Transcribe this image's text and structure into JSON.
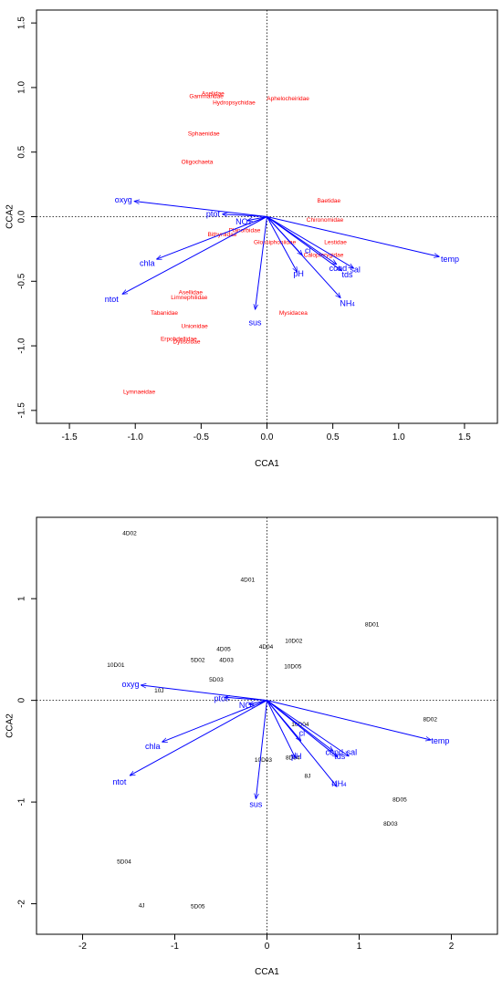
{
  "chart_data": [
    {
      "type": "scatter",
      "title": "",
      "xlabel": "CCA1",
      "ylabel": "CCA2",
      "xlim": [
        -1.75,
        1.75
      ],
      "ylim": [
        -1.6,
        1.6
      ],
      "xticks": [
        -1.5,
        -1.0,
        -0.5,
        0.0,
        0.5,
        1.0,
        1.5
      ],
      "xtick_labels": [
        "-1.5",
        "-1.0",
        "-0.5",
        "0.0",
        "0.5",
        "1.0",
        "1.5"
      ],
      "yticks": [
        -1.5,
        -1.0,
        -0.5,
        0.0,
        0.5,
        1.0,
        1.5
      ],
      "ytick_labels": [
        "-1.5",
        "-1.0",
        "-0.5",
        "0.0",
        "0.5",
        "1.0",
        "1.5"
      ],
      "grid": false,
      "reference_lines": {
        "x": 0,
        "y": 0
      },
      "colors": {
        "species": "#ff0000",
        "variables": "#0000ff"
      },
      "species": [
        {
          "label": "Gammaridae",
          "x": -0.46,
          "y": 0.93
        },
        {
          "label": "Aselidae",
          "x": -0.41,
          "y": 0.95
        },
        {
          "label": "Hydropsychidae",
          "x": -0.25,
          "y": 0.88
        },
        {
          "label": "Aphelocheiridae",
          "x": 0.16,
          "y": 0.91
        },
        {
          "label": "Sphaenidae",
          "x": -0.48,
          "y": 0.64
        },
        {
          "label": "Oligochaeta",
          "x": -0.53,
          "y": 0.42
        },
        {
          "label": "Baetidae",
          "x": 0.47,
          "y": 0.12
        },
        {
          "label": "Chironomidae",
          "x": 0.44,
          "y": -0.03
        },
        {
          "label": "Planorbidae",
          "x": -0.17,
          "y": -0.11
        },
        {
          "label": "Bithyniidae",
          "x": -0.34,
          "y": -0.14
        },
        {
          "label": "Glossiphoniidae",
          "x": 0.06,
          "y": -0.2
        },
        {
          "label": "Lestidae",
          "x": 0.52,
          "y": -0.2
        },
        {
          "label": "Calopterygidae",
          "x": 0.43,
          "y": -0.3
        },
        {
          "label": "Asellidae",
          "x": -0.58,
          "y": -0.59
        },
        {
          "label": "Limnephilidae",
          "x": -0.59,
          "y": -0.63
        },
        {
          "label": "Tabanidae",
          "x": -0.78,
          "y": -0.75
        },
        {
          "label": "Mysidacea",
          "x": 0.2,
          "y": -0.75
        },
        {
          "label": "Unionidae",
          "x": -0.55,
          "y": -0.85
        },
        {
          "label": "Erpobdellidae",
          "x": -0.67,
          "y": -0.95
        },
        {
          "label": "Dytiscidae",
          "x": -0.61,
          "y": -0.97
        },
        {
          "label": "Lymnaeidae",
          "x": -0.97,
          "y": -1.36
        }
      ],
      "vectors": [
        {
          "label": "oxyg",
          "x": -1.01,
          "y": 0.12,
          "label_x": -1.09,
          "label_y": 0.13
        },
        {
          "label": "ptot",
          "x": -0.34,
          "y": 0.02,
          "label_x": -0.41,
          "label_y": 0.02
        },
        {
          "label": "NO3",
          "x": -0.15,
          "y": -0.03,
          "label_x": -0.18,
          "label_y": -0.04
        },
        {
          "label": "chla",
          "x": -0.84,
          "y": -0.33,
          "label_x": -0.91,
          "label_y": -0.36
        },
        {
          "label": "ntot",
          "x": -1.1,
          "y": -0.6,
          "label_x": -1.18,
          "label_y": -0.64
        },
        {
          "label": "sus",
          "x": -0.09,
          "y": -0.72,
          "label_x": -0.09,
          "label_y": -0.82
        },
        {
          "label": "pH",
          "x": 0.23,
          "y": -0.43,
          "label_x": 0.24,
          "label_y": -0.44
        },
        {
          "label": "cl",
          "x": 0.27,
          "y": -0.3,
          "label_x": 0.31,
          "label_y": -0.26
        },
        {
          "label": "cond",
          "x": 0.53,
          "y": -0.37,
          "label_x": 0.54,
          "label_y": -0.4
        },
        {
          "label": "sal",
          "x": 0.66,
          "y": -0.4,
          "label_x": 0.67,
          "label_y": -0.41
        },
        {
          "label": "tds",
          "x": 0.57,
          "y": -0.42,
          "label_x": 0.61,
          "label_y": -0.45
        },
        {
          "label": "NH4",
          "x": 0.56,
          "y": -0.63,
          "label_x": 0.61,
          "label_y": -0.67
        },
        {
          "label": "temp",
          "x": 1.31,
          "y": -0.31,
          "label_x": 1.39,
          "label_y": -0.33
        }
      ]
    },
    {
      "type": "scatter",
      "title": "",
      "xlabel": "CCA1",
      "ylabel": "CCA2",
      "xlim": [
        -2.5,
        2.5
      ],
      "ylim": [
        -2.3,
        1.8
      ],
      "xticks": [
        -2,
        -1,
        0,
        1,
        2
      ],
      "xtick_labels": [
        "-2",
        "-1",
        "0",
        "1",
        "2"
      ],
      "yticks": [
        -2,
        -1,
        0,
        1
      ],
      "ytick_labels": [
        "-2",
        "-1",
        "0",
        "1"
      ],
      "grid": false,
      "reference_lines": {
        "x": 0,
        "y": 0
      },
      "colors": {
        "sites": "#000000",
        "variables": "#0000ff"
      },
      "sites": [
        {
          "label": "4D02",
          "x": -1.49,
          "y": 1.64
        },
        {
          "label": "4D01",
          "x": -0.21,
          "y": 1.18
        },
        {
          "label": "8D01",
          "x": 1.14,
          "y": 0.74
        },
        {
          "label": "10D02",
          "x": 0.29,
          "y": 0.58
        },
        {
          "label": "4D04",
          "x": -0.01,
          "y": 0.52
        },
        {
          "label": "4D05",
          "x": -0.47,
          "y": 0.5
        },
        {
          "label": "5D02",
          "x": -0.75,
          "y": 0.39
        },
        {
          "label": "4D03",
          "x": -0.44,
          "y": 0.39
        },
        {
          "label": "10D01",
          "x": -1.64,
          "y": 0.34
        },
        {
          "label": "10D05",
          "x": 0.28,
          "y": 0.33
        },
        {
          "label": "5D03",
          "x": -0.55,
          "y": 0.2
        },
        {
          "label": "10J",
          "x": -1.17,
          "y": 0.09
        },
        {
          "label": "8D02",
          "x": 1.77,
          "y": -0.19
        },
        {
          "label": "10D04",
          "x": 0.36,
          "y": -0.24
        },
        {
          "label": "8D04",
          "x": 0.28,
          "y": -0.57
        },
        {
          "label": "10D03",
          "x": -0.04,
          "y": -0.59
        },
        {
          "label": "8J",
          "x": 0.44,
          "y": -0.75
        },
        {
          "label": "8D05",
          "x": 1.44,
          "y": -0.98
        },
        {
          "label": "8D03",
          "x": 1.34,
          "y": -1.22
        },
        {
          "label": "5D04",
          "x": -1.55,
          "y": -1.59
        },
        {
          "label": "4J",
          "x": -1.36,
          "y": -2.02
        },
        {
          "label": "5D05",
          "x": -0.75,
          "y": -2.03
        }
      ],
      "vectors": [
        {
          "label": "oxyg",
          "x": -1.37,
          "y": 0.15,
          "label_x": -1.48,
          "label_y": 0.16
        },
        {
          "label": "ptot",
          "x": -0.46,
          "y": 0.03,
          "label_x": -0.5,
          "label_y": 0.02
        },
        {
          "label": "NO3",
          "x": -0.2,
          "y": -0.04,
          "label_x": -0.22,
          "label_y": -0.05
        },
        {
          "label": "chla",
          "x": -1.14,
          "y": -0.41,
          "label_x": -1.24,
          "label_y": -0.45
        },
        {
          "label": "ntot",
          "x": -1.49,
          "y": -0.74,
          "label_x": -1.6,
          "label_y": -0.8
        },
        {
          "label": "sus",
          "x": -0.12,
          "y": -0.97,
          "label_x": -0.12,
          "label_y": -1.02
        },
        {
          "label": "pH",
          "x": 0.31,
          "y": -0.57,
          "label_x": 0.32,
          "label_y": -0.55
        },
        {
          "label": "cl",
          "x": 0.37,
          "y": -0.4,
          "label_x": 0.38,
          "label_y": -0.32
        },
        {
          "label": "cond",
          "x": 0.72,
          "y": -0.5,
          "label_x": 0.73,
          "label_y": -0.51
        },
        {
          "label": "sal",
          "x": 0.89,
          "y": -0.55,
          "label_x": 0.92,
          "label_y": -0.51
        },
        {
          "label": "tds",
          "x": 0.77,
          "y": -0.56,
          "label_x": 0.79,
          "label_y": -0.55
        },
        {
          "label": "NH4",
          "x": 0.76,
          "y": -0.85,
          "label_x": 0.78,
          "label_y": -0.82
        },
        {
          "label": "temp",
          "x": 1.78,
          "y": -0.39,
          "label_x": 1.88,
          "label_y": -0.4
        }
      ]
    }
  ]
}
